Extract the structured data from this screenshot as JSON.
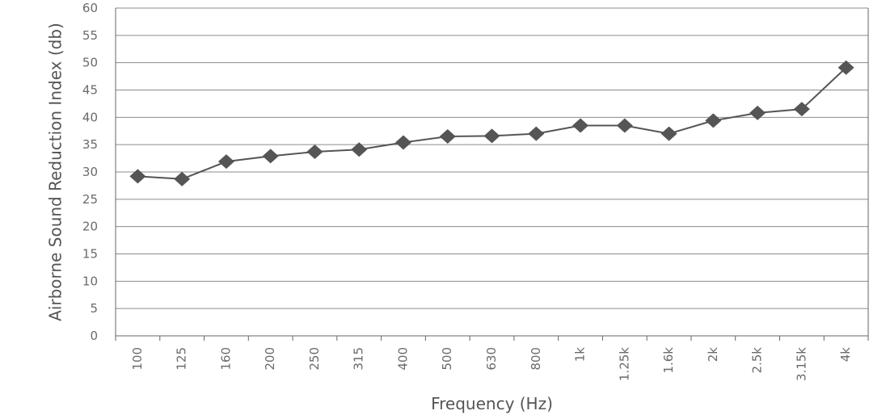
{
  "chart_data": {
    "type": "line",
    "title": "",
    "xlabel": "Frequency (Hz)",
    "ylabel": "Airborne Sound Reduction Index (db)",
    "ylim": [
      0,
      60
    ],
    "yticks": [
      0,
      5,
      10,
      15,
      20,
      25,
      30,
      35,
      40,
      45,
      50,
      55,
      60
    ],
    "grid": true,
    "legend": "none",
    "marker": "diamond",
    "colors": {
      "series": "#555555",
      "grid": "#8c8c8c",
      "text": "#6a6a6a"
    },
    "categories": [
      "100",
      "125",
      "160",
      "200",
      "250",
      "315",
      "400",
      "500",
      "630",
      "800",
      "1k",
      "1.25k",
      "1.6k",
      "2k",
      "2.5k",
      "3.15k",
      "4k"
    ],
    "series": [
      {
        "values": [
          29.2,
          28.7,
          31.9,
          32.9,
          33.7,
          34.1,
          35.4,
          36.5,
          36.6,
          37.0,
          38.5,
          38.5,
          37.0,
          39.4,
          40.8,
          41.5,
          49.1
        ]
      }
    ]
  }
}
